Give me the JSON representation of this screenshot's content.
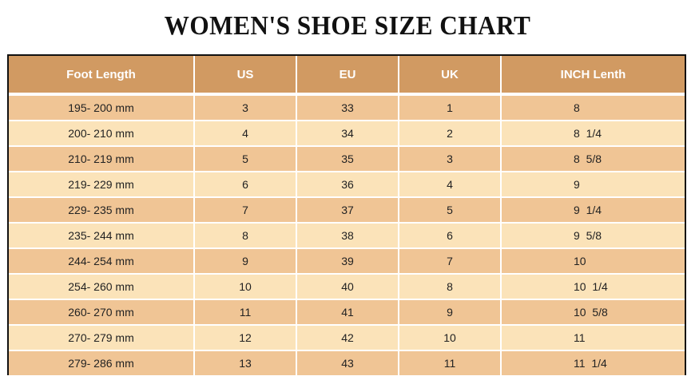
{
  "title": "WOMEN'S SHOE SIZE CHART",
  "table": {
    "headers": [
      "Foot Length",
      "US",
      "EU",
      "UK",
      "INCH Lenth"
    ],
    "rows": [
      [
        "195- 200 mm",
        "3",
        "33",
        "1",
        "8"
      ],
      [
        "200- 210 mm",
        "4",
        "34",
        "2",
        "8  1/4"
      ],
      [
        "210- 219 mm",
        "5",
        "35",
        "3",
        "8  5/8"
      ],
      [
        "219- 229 mm",
        "6",
        "36",
        "4",
        "9"
      ],
      [
        "229- 235 mm",
        "7",
        "37",
        "5",
        "9  1/4"
      ],
      [
        "235- 244 mm",
        "8",
        "38",
        "6",
        "9  5/8"
      ],
      [
        "244- 254 mm",
        "9",
        "39",
        "7",
        "10"
      ],
      [
        "254- 260 mm",
        "10",
        "40",
        "8",
        "10  1/4"
      ],
      [
        "260- 270 mm",
        "11",
        "41",
        "9",
        "10  5/8"
      ],
      [
        "270- 279 mm",
        "12",
        "42",
        "10",
        "11"
      ],
      [
        "279- 286 mm",
        "13",
        "43",
        "11",
        "11  1/4"
      ]
    ]
  },
  "colors": {
    "header_bg": "#d19a62",
    "row_dark": "#f0c595",
    "row_light": "#fbe3b9"
  }
}
